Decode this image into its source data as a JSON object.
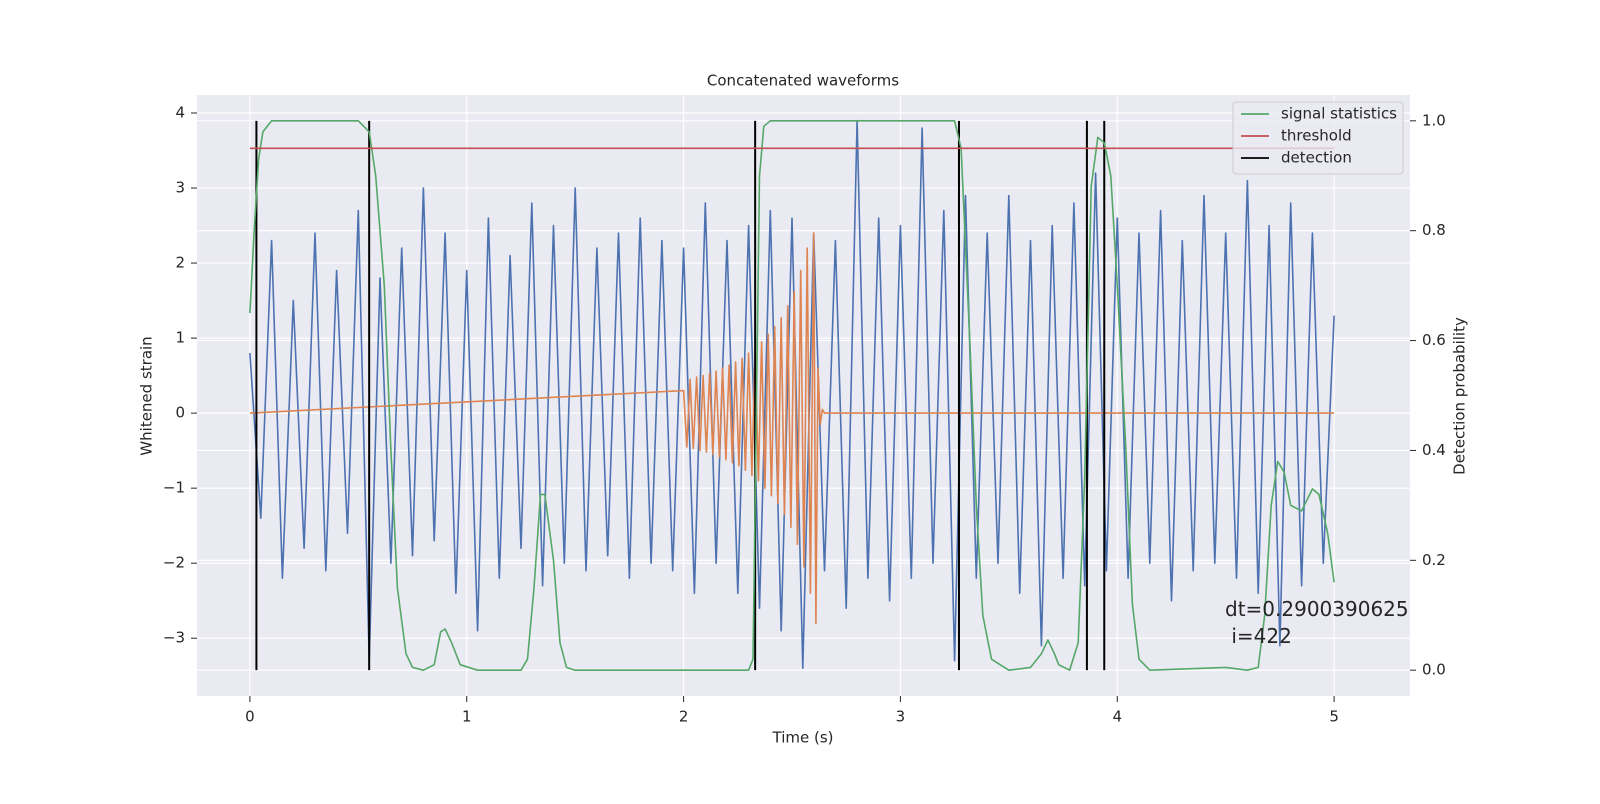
{
  "chart_data": {
    "type": "line",
    "title": "Concatenated waveforms",
    "x_label": "Time (s)",
    "y_label": "Whitened strain",
    "y2_label": "Detection probability",
    "annotation": "dt=0.2900390625\n i=422",
    "xlim": [
      -0.244,
      5.35
    ],
    "ylim": [
      -3.77,
      4.24
    ],
    "y2lim": [
      -0.047,
      1.047
    ],
    "xticks": [
      0,
      1,
      2,
      3,
      4,
      5
    ],
    "yticks": [
      {
        "value": -3,
        "label": "−3"
      },
      {
        "value": -2,
        "label": "−2"
      },
      {
        "value": -1,
        "label": "−1"
      },
      0,
      1,
      2,
      3,
      4
    ],
    "y2ticks": [
      {
        "value": 0,
        "label": "0.0"
      },
      0.2,
      0.4,
      0.6,
      0.8,
      {
        "value": 1,
        "label": "1.0"
      }
    ],
    "grid": true,
    "legend": "upper right",
    "background": "#eaeaf2",
    "series": [
      {
        "color": "#4c72b0",
        "axis": "y",
        "x": [
          0,
          0.05,
          0.1,
          0.15,
          0.2,
          0.25,
          0.3,
          0.35,
          0.4,
          0.45,
          0.5,
          0.55,
          0.6,
          0.65,
          0.7,
          0.75,
          0.8,
          0.85,
          0.9,
          0.95,
          1,
          1.05,
          1.1,
          1.15,
          1.2,
          1.25,
          1.3,
          1.35,
          1.4,
          1.45,
          1.5,
          1.55,
          1.6,
          1.65,
          1.7,
          1.75,
          1.8,
          1.85,
          1.9,
          1.95,
          2,
          2.05,
          2.1,
          2.15,
          2.2,
          2.25,
          2.3,
          2.35,
          2.4,
          2.45,
          2.5,
          2.55,
          2.6,
          2.65,
          2.7,
          2.75,
          2.8,
          2.85,
          2.9,
          2.95,
          3,
          3.05,
          3.1,
          3.15,
          3.2,
          3.25,
          3.3,
          3.35,
          3.4,
          3.45,
          3.5,
          3.55,
          3.6,
          3.65,
          3.7,
          3.75,
          3.8,
          3.85,
          3.9,
          3.95,
          4,
          4.05,
          4.1,
          4.15,
          4.2,
          4.25,
          4.3,
          4.35,
          4.4,
          4.45,
          4.5,
          4.55,
          4.6,
          4.65,
          4.7,
          4.75,
          4.8,
          4.85,
          4.9,
          4.95,
          5
        ],
        "values": [
          0.8,
          -1.4,
          2.3,
          -2.2,
          1.5,
          -1.8,
          2.4,
          -2.1,
          1.9,
          -1.6,
          2.7,
          -3.3,
          1.8,
          -2.0,
          2.2,
          -1.9,
          3.0,
          -1.7,
          2.4,
          -2.4,
          1.9,
          -2.9,
          2.6,
          -2.2,
          2.1,
          -1.8,
          2.8,
          -2.3,
          2.5,
          -2.0,
          3.0,
          -2.1,
          2.2,
          -1.9,
          2.4,
          -2.2,
          2.6,
          -2.0,
          2.3,
          -2.1,
          2.2,
          -2.4,
          2.8,
          -2.0,
          2.3,
          -2.4,
          2.5,
          -2.6,
          2.7,
          -2.9,
          2.6,
          -3.4,
          2.4,
          -2.1,
          2.3,
          -2.6,
          3.9,
          -2.2,
          2.6,
          -2.5,
          2.5,
          -2.2,
          3.8,
          -2.0,
          2.7,
          -3.3,
          2.9,
          -2.2,
          2.4,
          -2.0,
          2.9,
          -2.4,
          2.3,
          -3.1,
          2.5,
          -2.2,
          2.8,
          -2.3,
          3.2,
          -2.1,
          2.6,
          -2.2,
          2.4,
          -2.0,
          2.7,
          -2.5,
          2.3,
          -2.1,
          2.9,
          -2.0,
          2.4,
          -2.2,
          3.1,
          -2.4,
          2.5,
          -3.1,
          2.8,
          -2.3,
          2.4,
          -2.0,
          1.3
        ]
      },
      {
        "color": "#dd8452",
        "axis": "y",
        "x": [
          0,
          2.0,
          2.015,
          2.03,
          2.045,
          2.06,
          2.075,
          2.09,
          2.105,
          2.12,
          2.135,
          2.15,
          2.165,
          2.18,
          2.195,
          2.21,
          2.225,
          2.24,
          2.255,
          2.27,
          2.285,
          2.3,
          2.315,
          2.33,
          2.345,
          2.36,
          2.375,
          2.39,
          2.405,
          2.42,
          2.435,
          2.45,
          2.465,
          2.48,
          2.495,
          2.51,
          2.525,
          2.54,
          2.555,
          2.57,
          2.585,
          2.6,
          2.61,
          2.62,
          2.63,
          2.64,
          2.65,
          5.0
        ],
        "values": [
          0,
          0.3,
          -0.45,
          0.45,
          -0.47,
          0.48,
          -0.5,
          0.5,
          -0.52,
          0.53,
          -0.55,
          0.56,
          -0.58,
          0.6,
          -0.62,
          0.64,
          -0.66,
          0.68,
          -0.7,
          0.73,
          -0.76,
          0.8,
          -0.83,
          0.86,
          -0.9,
          0.95,
          -1.0,
          1.05,
          -1.1,
          1.15,
          -1.2,
          1.27,
          -1.35,
          1.43,
          -1.52,
          1.62,
          -1.75,
          1.9,
          -2.05,
          2.2,
          -2.4,
          2.4,
          -2.8,
          0.6,
          -0.15,
          0.05,
          0,
          0
        ]
      },
      {
        "name": "signal statistics",
        "color": "#55a868",
        "axis": "y2",
        "x": [
          0,
          0.02,
          0.04,
          0.06,
          0.1,
          0.5,
          0.55,
          0.58,
          0.62,
          0.65,
          0.68,
          0.72,
          0.75,
          0.8,
          0.85,
          0.88,
          0.9,
          0.93,
          0.97,
          1.05,
          1.25,
          1.28,
          1.31,
          1.34,
          1.36,
          1.4,
          1.43,
          1.46,
          1.5,
          2.3,
          2.32,
          2.33,
          2.35,
          2.37,
          2.4,
          3.25,
          3.28,
          3.32,
          3.35,
          3.38,
          3.42,
          3.5,
          3.6,
          3.65,
          3.68,
          3.71,
          3.73,
          3.78,
          3.82,
          3.85,
          3.88,
          3.91,
          3.94,
          3.97,
          4.0,
          4.04,
          4.07,
          4.1,
          4.15,
          4.5,
          4.6,
          4.65,
          4.68,
          4.71,
          4.74,
          4.77,
          4.8,
          4.85,
          4.9,
          4.93,
          4.97,
          5.0
        ],
        "values": [
          0.65,
          0.8,
          0.93,
          0.98,
          1.0,
          1.0,
          0.98,
          0.9,
          0.7,
          0.4,
          0.15,
          0.03,
          0.005,
          0.0,
          0.01,
          0.07,
          0.075,
          0.05,
          0.01,
          0.0,
          0.0,
          0.02,
          0.15,
          0.32,
          0.32,
          0.2,
          0.05,
          0.005,
          0.0,
          0.0,
          0.02,
          0.3,
          0.9,
          0.99,
          1.0,
          1.0,
          0.95,
          0.6,
          0.3,
          0.1,
          0.02,
          0.0,
          0.005,
          0.03,
          0.055,
          0.03,
          0.01,
          0.0,
          0.05,
          0.35,
          0.88,
          0.97,
          0.96,
          0.9,
          0.7,
          0.4,
          0.12,
          0.02,
          0.0,
          0.005,
          0.0,
          0.005,
          0.1,
          0.3,
          0.38,
          0.36,
          0.3,
          0.29,
          0.33,
          0.32,
          0.25,
          0.16
        ]
      },
      {
        "name": "threshold",
        "color": "#c44e52",
        "axis": "y2",
        "x": [
          0,
          5
        ],
        "values": [
          0.95,
          0.95
        ]
      },
      {
        "name": "detection",
        "color": "#000000",
        "axis": "y2",
        "kind": "vlines",
        "x": [
          0.03,
          0.55,
          2.33,
          3.27,
          3.86,
          3.94
        ],
        "ymin": 0,
        "ymax": 1
      }
    ]
  }
}
